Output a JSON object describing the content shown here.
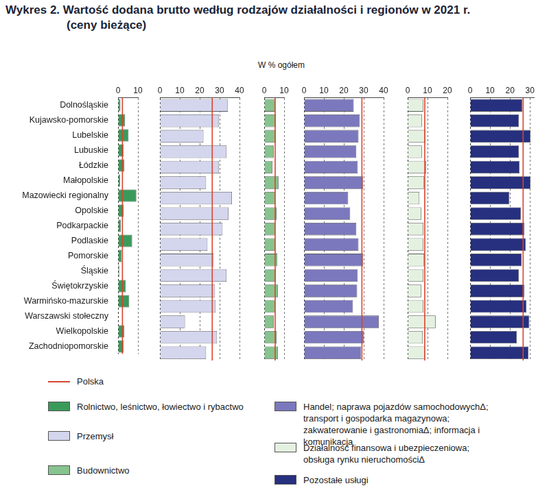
{
  "chart_data": {
    "type": "bar",
    "title": "Wykres 2. Wartość dodana brutto według rodzajów działalności i regionów w 2021 r.",
    "subtitle": "(ceny bieżące)",
    "x_label": "W % ogółem",
    "orientation": "horizontal",
    "grid": true,
    "legend": "bottom",
    "categories": [
      "Dolnośląskie",
      "Kujawsko-pomorskie",
      "Lubelskie",
      "Lubuskie",
      "Łódzkie",
      "Małopolskie",
      "Mazowiecki regionalny",
      "Opolskie",
      "Podkarpackie",
      "Podlaskie",
      "Pomorskie",
      "Śląskie",
      "Świętokrzyskie",
      "Warmińsko-mazurskie",
      "Warszawski stołeczny",
      "Wielkopolskie",
      "Zachodniopomorskie"
    ],
    "series": [
      {
        "name": "Rolnictwo, leśnictwo, łowiectwo i rybactwo",
        "color": "#3a9a5a",
        "values": [
          1.2,
          3.5,
          5.3,
          2.8,
          3.2,
          1.1,
          9.2,
          2.9,
          1.4,
          7.1,
          1.8,
          0.6,
          3.9,
          5.6,
          0.2,
          3.2,
          2.8
        ],
        "xlim": [
          0,
          10
        ],
        "xticks": [
          0,
          10
        ]
      },
      {
        "name": "Przemysł",
        "color": "#d4d6ee",
        "values": [
          34.2,
          29.7,
          21.9,
          33.5,
          29.7,
          23.2,
          36.2,
          34.5,
          31.5,
          23.9,
          27.0,
          33.5,
          27.7,
          28.0,
          12.6,
          28.7,
          23.2
        ],
        "xlim": [
          0,
          40
        ],
        "xticks": [
          0,
          10,
          20,
          30,
          40
        ]
      },
      {
        "name": "Budownictwo",
        "color": "#86c38e",
        "values": [
          5.5,
          5.9,
          5.9,
          4.8,
          4.1,
          7.2,
          5.5,
          6.2,
          5.5,
          5.5,
          6.6,
          5.9,
          6.9,
          5.5,
          4.8,
          6.2,
          6.9
        ],
        "xlim": [
          0,
          10
        ],
        "xticks": [
          0,
          10
        ]
      },
      {
        "name": "Handel; naprawa pojazdów samochodowychΔ; transport i gospodarka magazynowa; zakwaterowanie i gastronomiaΔ; informacja i komunikacja",
        "color": "#7b78bd",
        "values": [
          25.0,
          28.0,
          27.4,
          26.3,
          27.0,
          29.7,
          22.2,
          23.2,
          26.3,
          27.4,
          29.7,
          27.0,
          26.7,
          24.6,
          37.6,
          30.1,
          28.7
        ],
        "xlim": [
          0,
          40
        ],
        "xticks": [
          0,
          10,
          20,
          30,
          40
        ]
      },
      {
        "name": "Działalność finansowa i ubezpieczeniowa; obsługa rynku nieruchomościΔ",
        "color": "#e4f1e0",
        "values": [
          7.9,
          7.2,
          9.0,
          7.2,
          9.3,
          8.3,
          5.9,
          6.9,
          7.9,
          7.9,
          8.3,
          7.9,
          6.9,
          7.9,
          14.1,
          7.6,
          8.6
        ],
        "xlim": [
          0,
          20
        ],
        "xticks": [
          0,
          10,
          20
        ]
      },
      {
        "name": "Pozostałe usługi",
        "color": "#26307f",
        "values": [
          26.2,
          24.5,
          30.3,
          24.5,
          24.8,
          30.3,
          19.7,
          25.5,
          27.2,
          27.9,
          25.9,
          24.5,
          27.2,
          28.3,
          29.7,
          23.4,
          29.3
        ],
        "xlim": [
          0,
          32
        ],
        "xticks": [
          0,
          10,
          20,
          30
        ]
      }
    ],
    "reference": {
      "name": "Polska",
      "color": "#d7442c",
      "values": [
        2.2,
        26.3,
        5.5,
        29.1,
        8.6,
        26.6
      ]
    }
  }
}
